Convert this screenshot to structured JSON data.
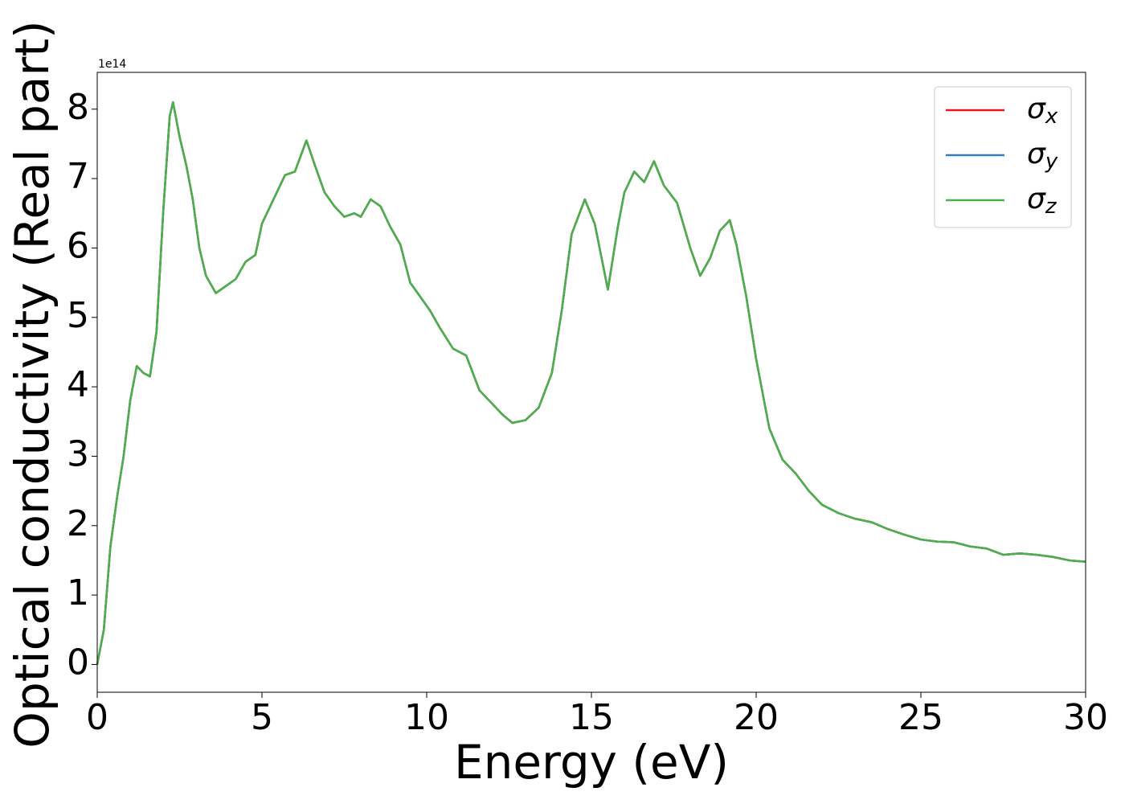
{
  "chart_data": {
    "type": "line",
    "xlabel": "Energy (eV)",
    "ylabel": "Optical conductivity (Real part)",
    "offset_text": "1e14",
    "x": [
      0,
      0.2,
      0.4,
      0.6,
      0.8,
      1.0,
      1.2,
      1.4,
      1.6,
      1.8,
      2.0,
      2.2,
      2.3,
      2.5,
      2.7,
      2.9,
      3.1,
      3.3,
      3.6,
      3.9,
      4.2,
      4.5,
      4.8,
      5.0,
      5.3,
      5.7,
      6.0,
      6.35,
      6.6,
      6.9,
      7.2,
      7.5,
      7.8,
      8.0,
      8.3,
      8.6,
      8.9,
      9.2,
      9.5,
      9.8,
      10.1,
      10.4,
      10.8,
      11.2,
      11.6,
      12.0,
      12.3,
      12.6,
      13.0,
      13.4,
      13.8,
      14.1,
      14.4,
      14.8,
      15.1,
      15.5,
      15.8,
      16.0,
      16.3,
      16.6,
      16.9,
      17.2,
      17.6,
      18.0,
      18.3,
      18.6,
      18.9,
      19.2,
      19.4,
      19.7,
      20.0,
      20.4,
      20.8,
      21.2,
      21.6,
      22.0,
      22.5,
      23.0,
      23.5,
      24.0,
      24.5,
      25.0,
      25.5,
      26.0,
      26.5,
      27.0,
      27.5,
      28.0,
      28.5,
      29.0,
      29.5,
      30.0
    ],
    "series": [
      {
        "name": "σx",
        "color": "#e41a1c",
        "values": [
          0,
          0.5,
          1.7,
          2.4,
          3.0,
          3.8,
          4.3,
          4.2,
          4.15,
          4.8,
          6.5,
          7.9,
          8.1,
          7.6,
          7.2,
          6.7,
          6.0,
          5.6,
          5.35,
          5.45,
          5.55,
          5.8,
          5.9,
          6.35,
          6.65,
          7.05,
          7.1,
          7.55,
          7.2,
          6.8,
          6.6,
          6.45,
          6.5,
          6.45,
          6.7,
          6.6,
          6.3,
          6.05,
          5.5,
          5.3,
          5.1,
          4.85,
          4.55,
          4.45,
          3.95,
          3.75,
          3.6,
          3.48,
          3.52,
          3.7,
          4.2,
          5.1,
          6.2,
          6.7,
          6.35,
          5.4,
          6.3,
          6.8,
          7.1,
          6.95,
          7.25,
          6.9,
          6.65,
          6.0,
          5.6,
          5.85,
          6.25,
          6.4,
          6.05,
          5.3,
          4.4,
          3.4,
          2.95,
          2.75,
          2.5,
          2.3,
          2.18,
          2.1,
          2.05,
          1.95,
          1.87,
          1.8,
          1.77,
          1.76,
          1.7,
          1.67,
          1.58,
          1.6,
          1.58,
          1.55,
          1.5,
          1.48
        ]
      },
      {
        "name": "σy",
        "color": "#377eb8",
        "values": [
          0,
          0.5,
          1.7,
          2.4,
          3.0,
          3.8,
          4.3,
          4.2,
          4.15,
          4.8,
          6.5,
          7.9,
          8.1,
          7.6,
          7.2,
          6.7,
          6.0,
          5.6,
          5.35,
          5.45,
          5.55,
          5.8,
          5.9,
          6.35,
          6.65,
          7.05,
          7.1,
          7.55,
          7.2,
          6.8,
          6.6,
          6.45,
          6.5,
          6.45,
          6.7,
          6.6,
          6.3,
          6.05,
          5.5,
          5.3,
          5.1,
          4.85,
          4.55,
          4.45,
          3.95,
          3.75,
          3.6,
          3.48,
          3.52,
          3.7,
          4.2,
          5.1,
          6.2,
          6.7,
          6.35,
          5.4,
          6.3,
          6.8,
          7.1,
          6.95,
          7.25,
          6.9,
          6.65,
          6.0,
          5.6,
          5.85,
          6.25,
          6.4,
          6.05,
          5.3,
          4.4,
          3.4,
          2.95,
          2.75,
          2.5,
          2.3,
          2.18,
          2.1,
          2.05,
          1.95,
          1.87,
          1.8,
          1.77,
          1.76,
          1.7,
          1.67,
          1.58,
          1.6,
          1.58,
          1.55,
          1.5,
          1.48
        ]
      },
      {
        "name": "σz",
        "color": "#4daf4a",
        "values": [
          0,
          0.5,
          1.7,
          2.4,
          3.0,
          3.8,
          4.3,
          4.2,
          4.15,
          4.8,
          6.5,
          7.9,
          8.1,
          7.6,
          7.2,
          6.7,
          6.0,
          5.6,
          5.35,
          5.45,
          5.55,
          5.8,
          5.9,
          6.35,
          6.65,
          7.05,
          7.1,
          7.55,
          7.2,
          6.8,
          6.6,
          6.45,
          6.5,
          6.45,
          6.7,
          6.6,
          6.3,
          6.05,
          5.5,
          5.3,
          5.1,
          4.85,
          4.55,
          4.45,
          3.95,
          3.75,
          3.6,
          3.48,
          3.52,
          3.7,
          4.2,
          5.1,
          6.2,
          6.7,
          6.35,
          5.4,
          6.3,
          6.8,
          7.1,
          6.95,
          7.25,
          6.9,
          6.65,
          6.0,
          5.6,
          5.85,
          6.25,
          6.4,
          6.05,
          5.3,
          4.4,
          3.4,
          2.95,
          2.75,
          2.5,
          2.3,
          2.18,
          2.1,
          2.05,
          1.95,
          1.87,
          1.8,
          1.77,
          1.76,
          1.7,
          1.67,
          1.58,
          1.6,
          1.58,
          1.55,
          1.5,
          1.48
        ]
      }
    ],
    "xlim": [
      0,
      30
    ],
    "xticks": [
      0,
      5,
      10,
      15,
      20,
      25,
      30
    ],
    "ylim": [
      -0.4,
      8.53
    ],
    "yticks": [
      0,
      1,
      2,
      3,
      4,
      5,
      6,
      7,
      8
    ],
    "grid": false,
    "legend": "upper right"
  }
}
